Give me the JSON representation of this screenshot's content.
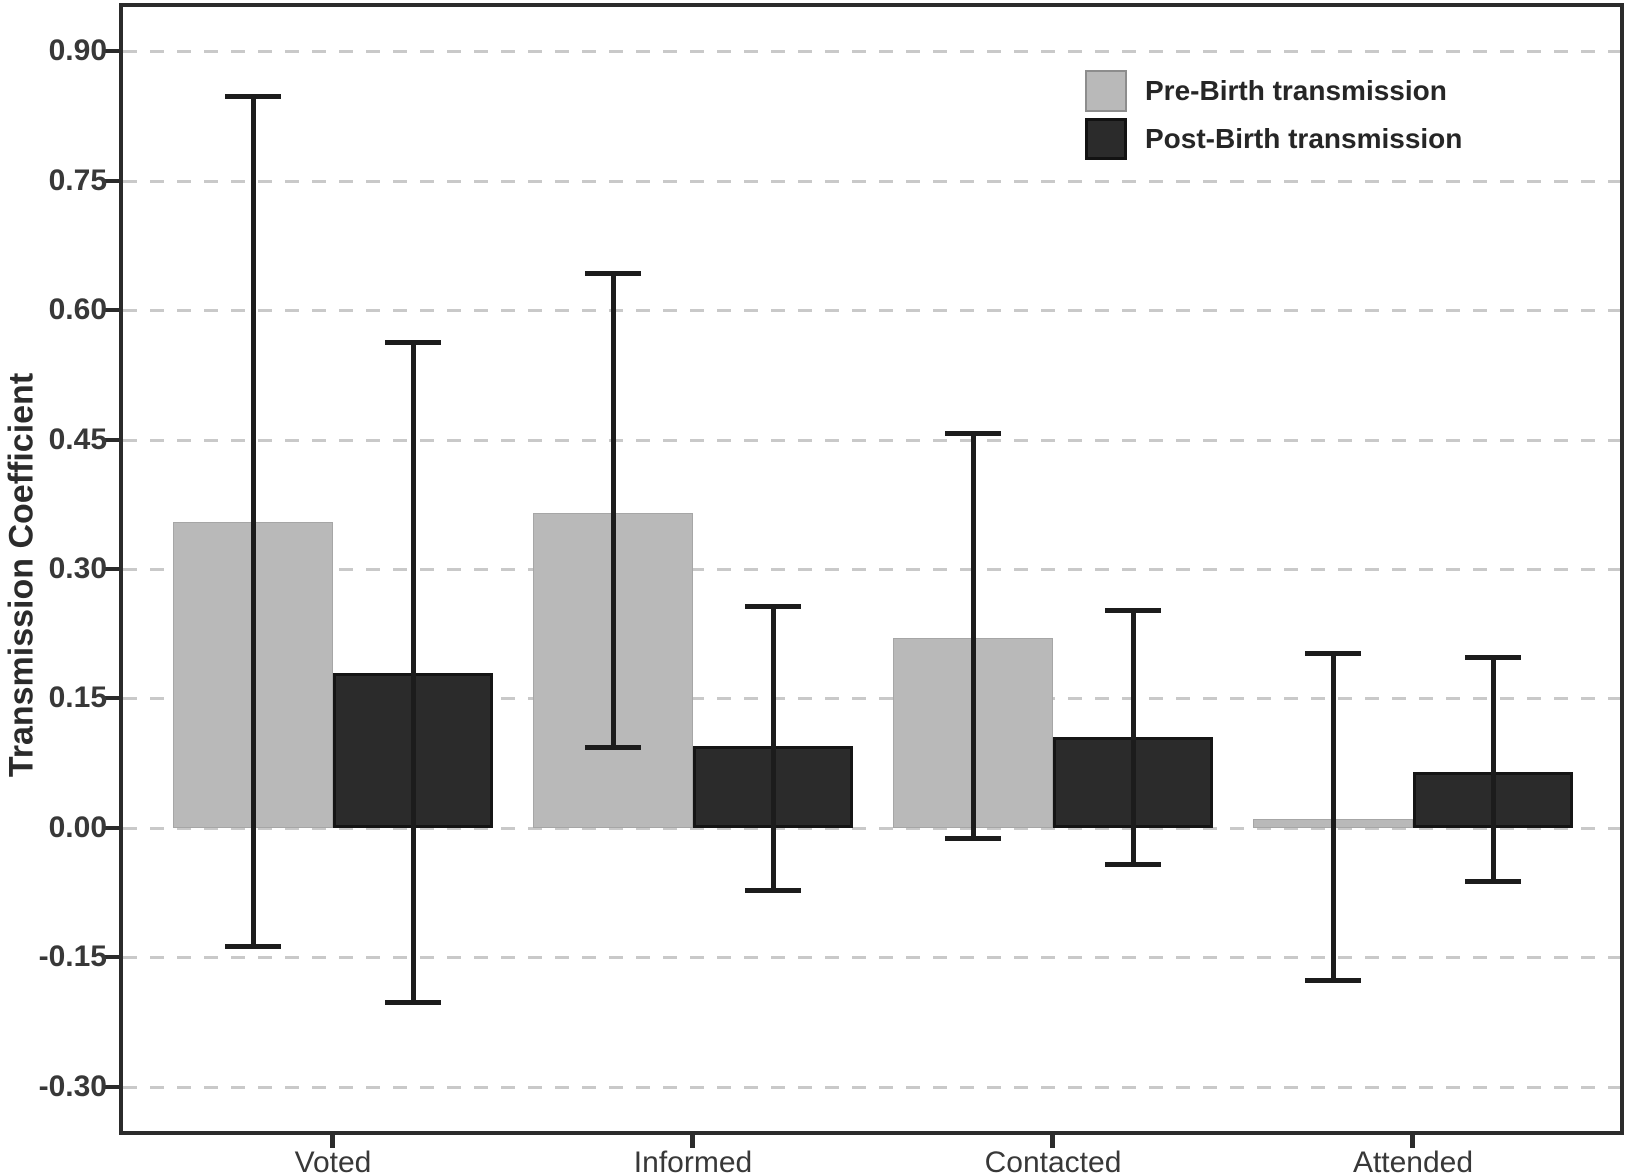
{
  "chart_data": {
    "type": "bar",
    "title": "",
    "ylabel": "Transmission Coefficient",
    "xlabel": "",
    "categories": [
      "Voted",
      "Informed",
      "Contacted",
      "Attended"
    ],
    "series": [
      {
        "name": "Pre-Birth transmission",
        "color": "#b9b9b9",
        "values": [
          0.355,
          0.365,
          0.22,
          0.01
        ],
        "error_low": [
          -0.14,
          0.09,
          -0.015,
          -0.18
        ],
        "error_high": [
          0.85,
          0.645,
          0.46,
          0.205
        ]
      },
      {
        "name": "Post-Birth transmission",
        "color": "#2b2b2b",
        "values": [
          0.18,
          0.095,
          0.105,
          0.065
        ],
        "error_low": [
          -0.205,
          -0.075,
          -0.045,
          -0.065
        ],
        "error_high": [
          0.565,
          0.26,
          0.255,
          0.2
        ]
      }
    ],
    "yticks": [
      0.9,
      0.75,
      0.6,
      0.45,
      0.3,
      0.15,
      0,
      -0.15,
      -0.3
    ],
    "ytick_labels": [
      "0.90",
      "0.75",
      "0.60",
      "0.45",
      "0.30",
      "0.15",
      "0.00",
      "-0.15",
      "-0.30"
    ],
    "ylim": [
      -0.351,
      0.951
    ],
    "grid": "horizontal-dashed",
    "legend_position": "top-right",
    "error_bars": true
  },
  "style": {
    "background": "#ffffff",
    "axis_color": "#2b2b2b",
    "grid_color": "#c9c9c9",
    "tick_label_color": "#383838",
    "errorbar_color": "#1c1c1c"
  }
}
